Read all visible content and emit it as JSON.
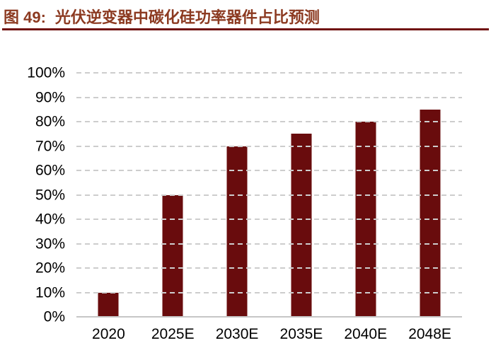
{
  "figure": {
    "label": "图 49:",
    "title": "光伏逆变器中碳化硅功率器件占比预测"
  },
  "chart_data": {
    "type": "bar",
    "title": "光伏逆变器中碳化硅功率器件占比预测",
    "categories": [
      "2020",
      "2025E",
      "2030E",
      "2035E",
      "2040E",
      "2048E"
    ],
    "values": [
      10,
      50,
      70,
      75,
      80,
      85
    ],
    "unit": "%",
    "xlabel": "",
    "ylabel": "",
    "ylim": [
      0,
      100
    ],
    "ytick_step": 10,
    "ytick_labels": [
      "0%",
      "10%",
      "20%",
      "30%",
      "40%",
      "50%",
      "60%",
      "70%",
      "80%",
      "90%",
      "100%"
    ],
    "grid": "horizontal-dashed",
    "legend": "none"
  },
  "colors": {
    "title_text": "#8C3A21",
    "rule": "#70100F",
    "bar": "#690C0D",
    "gridline": "#CDCDCD",
    "axis_line": "#C6C6C6",
    "axis_text": "#000000",
    "background": "#FFFFFF"
  }
}
